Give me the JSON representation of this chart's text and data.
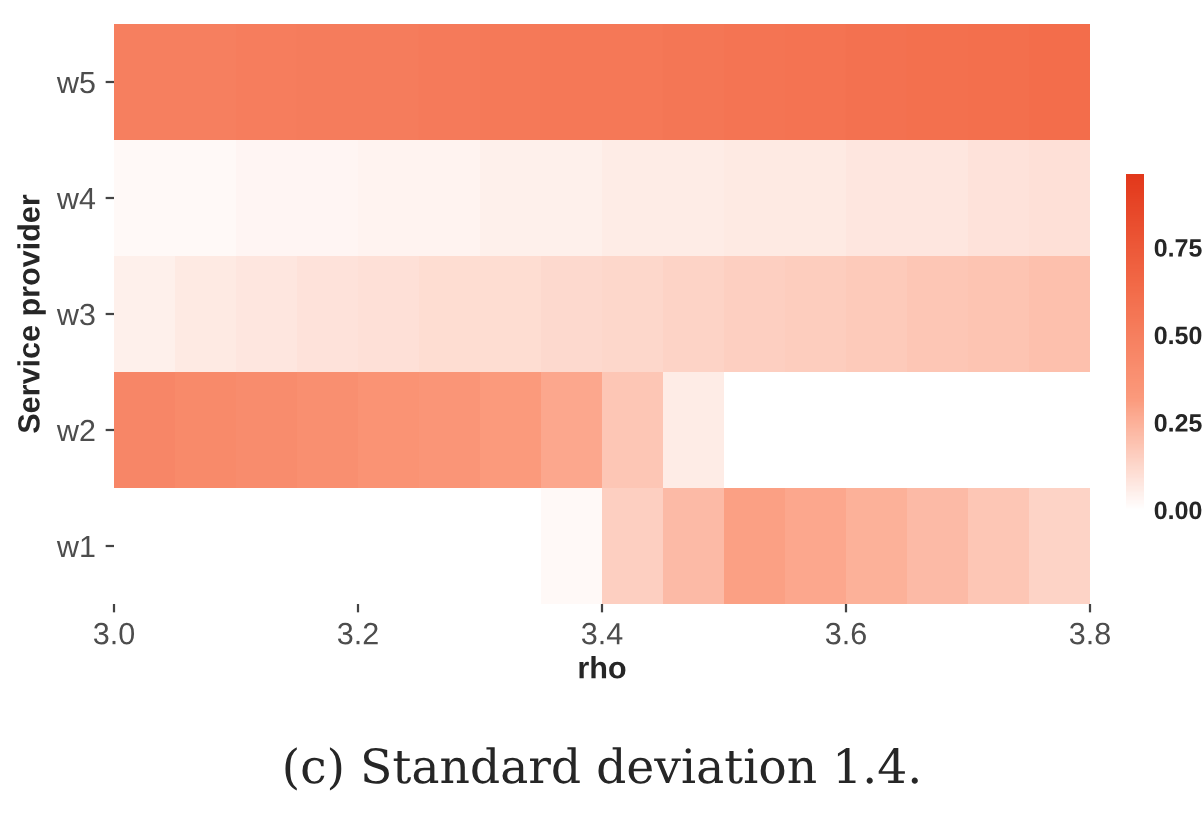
{
  "chart_data": {
    "type": "heatmap",
    "x": [
      3.025,
      3.075,
      3.125,
      3.175,
      3.225,
      3.275,
      3.325,
      3.375,
      3.425,
      3.475,
      3.525,
      3.575,
      3.625,
      3.675,
      3.725,
      3.775
    ],
    "y_categories": [
      "w5",
      "w4",
      "w3",
      "w2",
      "w1"
    ],
    "cells": [
      [
        0.5,
        0.5,
        0.51,
        0.52,
        0.52,
        0.53,
        0.54,
        0.55,
        0.55,
        0.56,
        0.57,
        0.58,
        0.59,
        0.6,
        0.61,
        0.62
      ],
      [
        0.02,
        0.02,
        0.03,
        0.03,
        0.04,
        0.04,
        0.05,
        0.05,
        0.06,
        0.06,
        0.07,
        0.07,
        0.08,
        0.08,
        0.09,
        0.1
      ],
      [
        0.05,
        0.07,
        0.08,
        0.09,
        0.1,
        0.11,
        0.11,
        0.12,
        0.13,
        0.14,
        0.15,
        0.16,
        0.17,
        0.18,
        0.19,
        0.2
      ],
      [
        0.45,
        0.43,
        0.41,
        0.39,
        0.37,
        0.35,
        0.32,
        0.28,
        0.18,
        0.06,
        null,
        null,
        null,
        null,
        null,
        null
      ],
      [
        null,
        null,
        null,
        null,
        null,
        null,
        null,
        0.02,
        0.15,
        0.22,
        0.3,
        0.28,
        0.25,
        0.22,
        0.18,
        0.14
      ]
    ],
    "xlim": [
      3.0,
      3.8
    ],
    "xticks": [
      {
        "value": 3.0,
        "label": "3.0"
      },
      {
        "value": 3.2,
        "label": "3.2"
      },
      {
        "value": 3.4,
        "label": "3.4"
      },
      {
        "value": 3.6,
        "label": "3.6"
      },
      {
        "value": 3.8,
        "label": "3.8"
      }
    ],
    "clim": [
      0,
      0.96
    ],
    "cticks": [
      {
        "value": 0,
        "label": "0.00"
      },
      {
        "value": 0.25,
        "label": "0.25"
      },
      {
        "value": 0.5,
        "label": "0.50"
      },
      {
        "value": 0.75,
        "label": "0.75"
      }
    ],
    "xlabel": "rho",
    "ylabel": "Service provider",
    "annotations": [
      "(c) Standard deviation 1.4."
    ]
  }
}
